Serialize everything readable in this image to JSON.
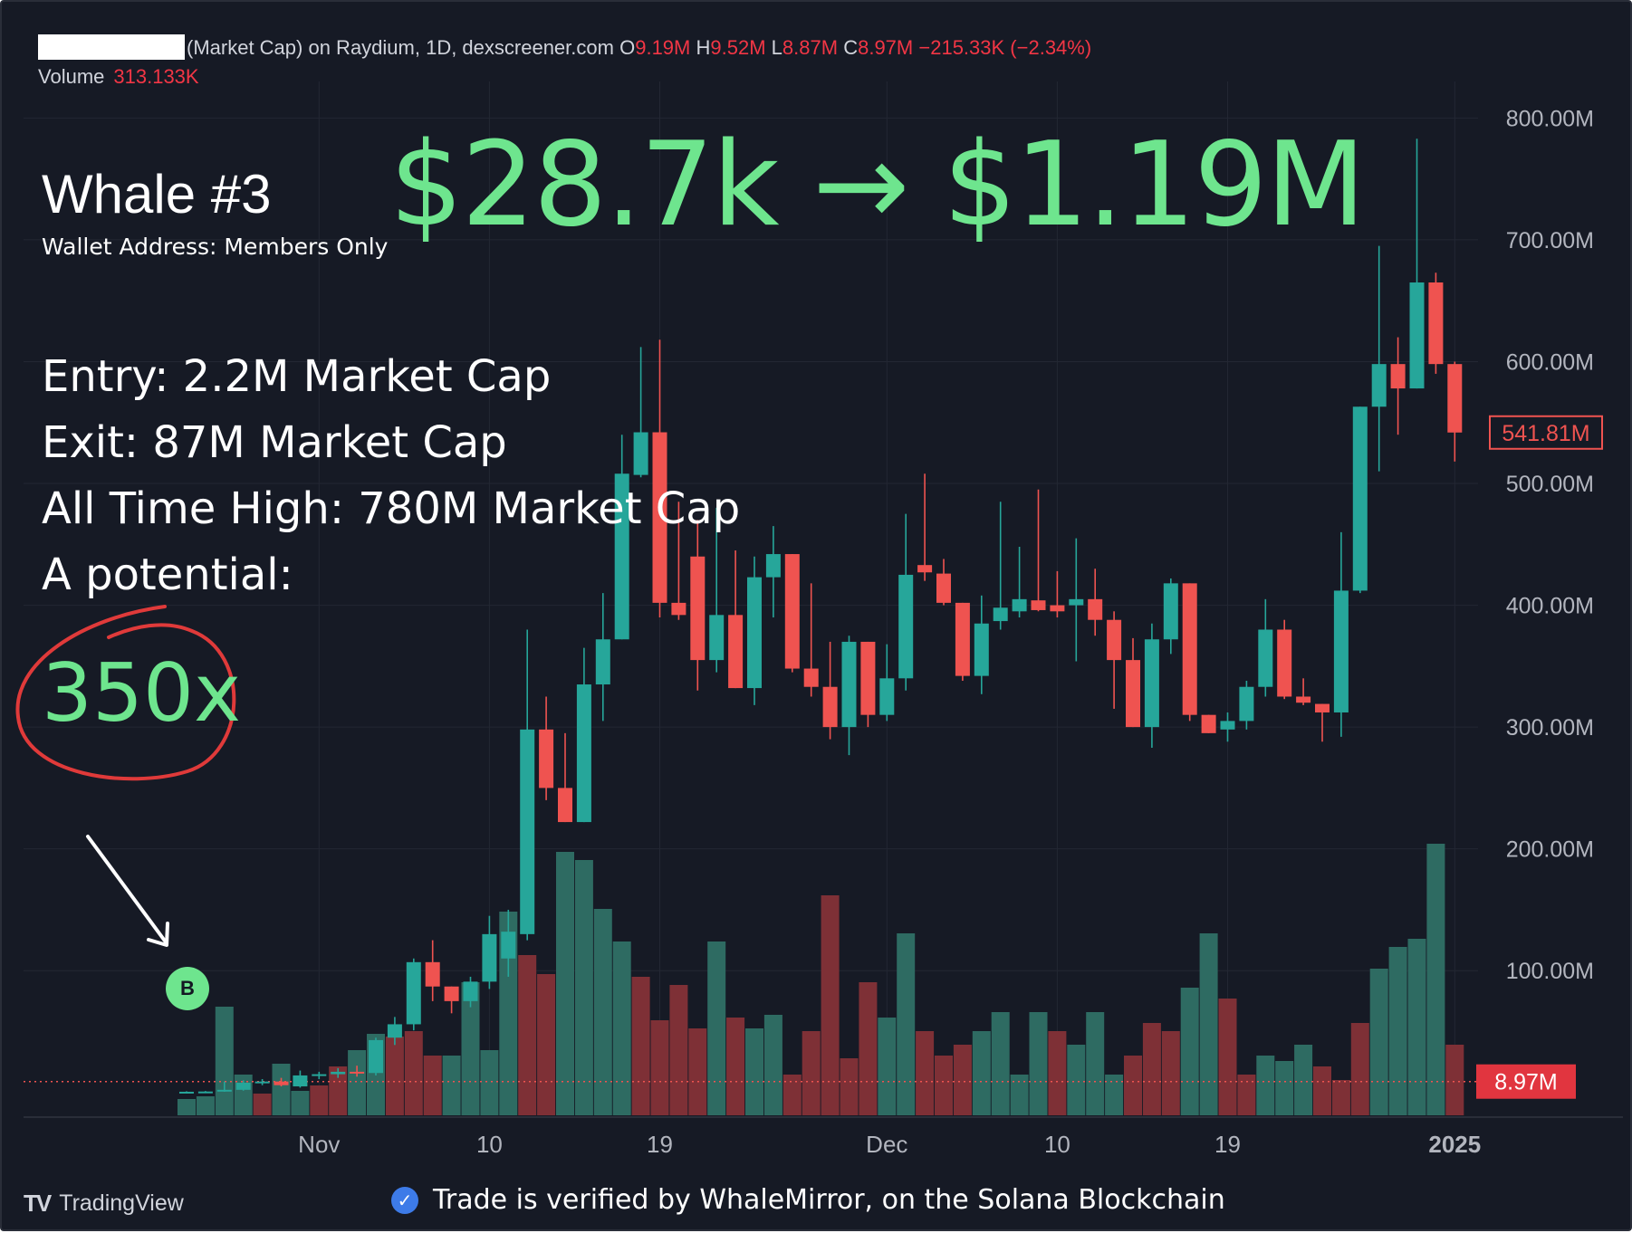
{
  "header": {
    "symbol_masked": "",
    "title_text": "(Market Cap) on Raydium, 1D, dexscreener.com",
    "o_label": "O",
    "o_value": "9.19M",
    "h_label": "H",
    "h_value": "9.52M",
    "l_label": "L",
    "l_value": "8.87M",
    "c_label": "C",
    "c_value": "8.97M",
    "change": "−215.33K (−2.34%)",
    "volume_label": "Volume",
    "volume_value": "313.133K"
  },
  "overlay": {
    "whale": "Whale #3",
    "wallet": "Wallet Address: Members Only",
    "gain": "$28.7k → $1.19M",
    "entry": "Entry: 2.2M Market Cap",
    "exit": "Exit: 87M Market Cap",
    "ath": "All Time High: 780M Market Cap",
    "potential": "A potential:",
    "multiplier": "350x",
    "buy_marker": "B"
  },
  "footer": {
    "tradingview_logo": "TV",
    "tradingview": "TradingView",
    "verified": "Trade is verified by WhaleMirror, on the Solana Blockchain"
  },
  "colors": {
    "background": "#161a25",
    "up": "#26a69a",
    "down": "#ef5350",
    "accent_green": "#6ee58e",
    "circle_red": "#e03a3a"
  },
  "chart_data": {
    "type": "candlestick",
    "y_axis": {
      "ticks": [
        "800.00M",
        "700.00M",
        "600.00M",
        "500.00M",
        "400.00M",
        "300.00M",
        "200.00M",
        "100.00M"
      ],
      "tick_values": [
        800,
        700,
        600,
        500,
        400,
        300,
        200,
        100
      ],
      "unit": "M",
      "ylim": [
        -18,
        830
      ]
    },
    "x_axis": {
      "ticks": [
        "Nov",
        "10",
        "19",
        "Dec",
        "10",
        "19",
        "2025"
      ],
      "tick_positions": [
        7,
        16,
        25,
        37,
        46,
        55,
        67
      ]
    },
    "price_labels": [
      {
        "text": "541.81M",
        "value": 541.81,
        "style": "outline"
      },
      {
        "text": "8.97M",
        "value": 8.97,
        "style": "filled"
      }
    ],
    "grid": true,
    "series": [
      {
        "name": "Market Cap",
        "candles": [
          {
            "i": 0,
            "o": 0.5,
            "h": 1,
            "l": 0.2,
            "c": 0.6
          },
          {
            "i": 1,
            "o": 0.6,
            "h": 1.2,
            "l": 0.4,
            "c": 0.8
          },
          {
            "i": 2,
            "o": 0.8,
            "h": 9,
            "l": 0.6,
            "c": 2.2
          },
          {
            "i": 3,
            "o": 2.2,
            "h": 10,
            "l": 1.5,
            "c": 8
          },
          {
            "i": 4,
            "o": 8,
            "h": 11,
            "l": 6,
            "c": 9
          },
          {
            "i": 5,
            "o": 9,
            "h": 12,
            "l": 5,
            "c": 6
          },
          {
            "i": 6,
            "o": 5,
            "h": 18,
            "l": 4,
            "c": 14
          },
          {
            "i": 7,
            "o": 14,
            "h": 17,
            "l": 11,
            "c": 15
          },
          {
            "i": 8,
            "o": 15,
            "h": 20,
            "l": 12,
            "c": 17
          },
          {
            "i": 9,
            "o": 17,
            "h": 22,
            "l": 13,
            "c": 16
          },
          {
            "i": 10,
            "o": 16,
            "h": 45,
            "l": 14,
            "c": 43
          },
          {
            "i": 11,
            "o": 45,
            "h": 62,
            "l": 39,
            "c": 56
          },
          {
            "i": 12,
            "o": 56,
            "h": 110,
            "l": 51,
            "c": 107
          },
          {
            "i": 13,
            "o": 107,
            "h": 125,
            "l": 75,
            "c": 87
          },
          {
            "i": 14,
            "o": 87,
            "h": 83,
            "l": 65,
            "c": 75
          },
          {
            "i": 15,
            "o": 75,
            "h": 95,
            "l": 70,
            "c": 91
          },
          {
            "i": 16,
            "o": 91,
            "h": 145,
            "l": 85,
            "c": 130
          },
          {
            "i": 17,
            "o": 110,
            "h": 150,
            "l": 95,
            "c": 132
          },
          {
            "i": 18,
            "o": 130,
            "h": 380,
            "l": 125,
            "c": 298
          },
          {
            "i": 19,
            "o": 298,
            "h": 325,
            "l": 240,
            "c": 250
          },
          {
            "i": 20,
            "o": 250,
            "h": 295,
            "l": 222,
            "c": 222
          },
          {
            "i": 21,
            "o": 222,
            "h": 365,
            "l": 222,
            "c": 335
          },
          {
            "i": 22,
            "o": 335,
            "h": 410,
            "l": 305,
            "c": 372
          },
          {
            "i": 23,
            "o": 372,
            "h": 540,
            "l": 372,
            "c": 508
          },
          {
            "i": 24,
            "o": 507,
            "h": 612,
            "l": 505,
            "c": 542
          },
          {
            "i": 25,
            "o": 542,
            "h": 618,
            "l": 390,
            "c": 402
          },
          {
            "i": 26,
            "o": 402,
            "h": 485,
            "l": 388,
            "c": 392
          },
          {
            "i": 27,
            "o": 440,
            "h": 470,
            "l": 330,
            "c": 355
          },
          {
            "i": 28,
            "o": 355,
            "h": 480,
            "l": 345,
            "c": 392
          },
          {
            "i": 29,
            "o": 392,
            "h": 445,
            "l": 335,
            "c": 332
          },
          {
            "i": 30,
            "o": 332,
            "h": 440,
            "l": 318,
            "c": 423
          },
          {
            "i": 31,
            "o": 423,
            "h": 465,
            "l": 390,
            "c": 442
          },
          {
            "i": 32,
            "o": 442,
            "h": 438,
            "l": 345,
            "c": 348
          },
          {
            "i": 33,
            "o": 348,
            "h": 418,
            "l": 325,
            "c": 333
          },
          {
            "i": 34,
            "o": 333,
            "h": 370,
            "l": 290,
            "c": 300
          },
          {
            "i": 35,
            "o": 300,
            "h": 375,
            "l": 277,
            "c": 370
          },
          {
            "i": 36,
            "o": 370,
            "h": 368,
            "l": 300,
            "c": 310
          },
          {
            "i": 37,
            "o": 310,
            "h": 368,
            "l": 305,
            "c": 340
          },
          {
            "i": 38,
            "o": 340,
            "h": 475,
            "l": 330,
            "c": 425
          },
          {
            "i": 39,
            "o": 433,
            "h": 508,
            "l": 420,
            "c": 427
          },
          {
            "i": 40,
            "o": 426,
            "h": 438,
            "l": 400,
            "c": 402
          },
          {
            "i": 41,
            "o": 402,
            "h": 400,
            "l": 338,
            "c": 342
          },
          {
            "i": 42,
            "o": 342,
            "h": 408,
            "l": 327,
            "c": 385
          },
          {
            "i": 43,
            "o": 387,
            "h": 485,
            "l": 380,
            "c": 398
          },
          {
            "i": 44,
            "o": 395,
            "h": 448,
            "l": 390,
            "c": 405
          },
          {
            "i": 45,
            "o": 404,
            "h": 495,
            "l": 395,
            "c": 396
          },
          {
            "i": 46,
            "o": 400,
            "h": 428,
            "l": 390,
            "c": 395
          },
          {
            "i": 47,
            "o": 400,
            "h": 455,
            "l": 354,
            "c": 405
          },
          {
            "i": 48,
            "o": 405,
            "h": 430,
            "l": 375,
            "c": 388
          },
          {
            "i": 49,
            "o": 388,
            "h": 395,
            "l": 315,
            "c": 355
          },
          {
            "i": 50,
            "o": 355,
            "h": 373,
            "l": 300,
            "c": 300
          },
          {
            "i": 51,
            "o": 300,
            "h": 385,
            "l": 283,
            "c": 372
          },
          {
            "i": 52,
            "o": 372,
            "h": 422,
            "l": 360,
            "c": 418
          },
          {
            "i": 53,
            "o": 418,
            "h": 413,
            "l": 305,
            "c": 310
          },
          {
            "i": 54,
            "o": 310,
            "h": 305,
            "l": 295,
            "c": 295
          },
          {
            "i": 55,
            "o": 298,
            "h": 312,
            "l": 288,
            "c": 305
          },
          {
            "i": 56,
            "o": 305,
            "h": 338,
            "l": 298,
            "c": 333
          },
          {
            "i": 57,
            "o": 333,
            "h": 405,
            "l": 325,
            "c": 380
          },
          {
            "i": 58,
            "o": 380,
            "h": 388,
            "l": 323,
            "c": 325
          },
          {
            "i": 59,
            "o": 325,
            "h": 340,
            "l": 318,
            "c": 320
          },
          {
            "i": 60,
            "o": 319,
            "h": 315,
            "l": 288,
            "c": 312
          },
          {
            "i": 61,
            "o": 312,
            "h": 460,
            "l": 292,
            "c": 412
          },
          {
            "i": 62,
            "o": 412,
            "h": 555,
            "l": 410,
            "c": 563
          },
          {
            "i": 63,
            "o": 563,
            "h": 695,
            "l": 510,
            "c": 598
          },
          {
            "i": 64,
            "o": 598,
            "h": 620,
            "l": 540,
            "c": 578
          },
          {
            "i": 65,
            "o": 578,
            "h": 783,
            "l": 578,
            "c": 665
          },
          {
            "i": 66,
            "o": 665,
            "h": 673,
            "l": 590,
            "c": 598
          },
          {
            "i": 67,
            "o": 598,
            "h": 600,
            "l": 518,
            "c": 541.81
          }
        ],
        "volume_relative": [
          {
            "i": 0,
            "v": 0.06,
            "dir": "up"
          },
          {
            "i": 1,
            "v": 0.07,
            "dir": "up"
          },
          {
            "i": 2,
            "v": 0.4,
            "dir": "up"
          },
          {
            "i": 3,
            "v": 0.15,
            "dir": "up"
          },
          {
            "i": 4,
            "v": 0.08,
            "dir": "down"
          },
          {
            "i": 5,
            "v": 0.19,
            "dir": "up"
          },
          {
            "i": 6,
            "v": 0.09,
            "dir": "up"
          },
          {
            "i": 7,
            "v": 0.11,
            "dir": "down"
          },
          {
            "i": 8,
            "v": 0.18,
            "dir": "down"
          },
          {
            "i": 9,
            "v": 0.24,
            "dir": "up"
          },
          {
            "i": 10,
            "v": 0.3,
            "dir": "up"
          },
          {
            "i": 11,
            "v": 0.29,
            "dir": "down"
          },
          {
            "i": 12,
            "v": 0.31,
            "dir": "down"
          },
          {
            "i": 13,
            "v": 0.22,
            "dir": "down"
          },
          {
            "i": 14,
            "v": 0.22,
            "dir": "up"
          },
          {
            "i": 15,
            "v": 0.49,
            "dir": "up"
          },
          {
            "i": 16,
            "v": 0.24,
            "dir": "up"
          },
          {
            "i": 17,
            "v": 0.75,
            "dir": "up"
          },
          {
            "i": 18,
            "v": 0.59,
            "dir": "down"
          },
          {
            "i": 19,
            "v": 0.52,
            "dir": "down"
          },
          {
            "i": 20,
            "v": 0.97,
            "dir": "up"
          },
          {
            "i": 21,
            "v": 0.94,
            "dir": "up"
          },
          {
            "i": 22,
            "v": 0.76,
            "dir": "up"
          },
          {
            "i": 23,
            "v": 0.64,
            "dir": "up"
          },
          {
            "i": 24,
            "v": 0.51,
            "dir": "down"
          },
          {
            "i": 25,
            "v": 0.35,
            "dir": "down"
          },
          {
            "i": 26,
            "v": 0.48,
            "dir": "down"
          },
          {
            "i": 27,
            "v": 0.32,
            "dir": "down"
          },
          {
            "i": 28,
            "v": 0.64,
            "dir": "up"
          },
          {
            "i": 29,
            "v": 0.36,
            "dir": "down"
          },
          {
            "i": 30,
            "v": 0.32,
            "dir": "up"
          },
          {
            "i": 31,
            "v": 0.37,
            "dir": "up"
          },
          {
            "i": 32,
            "v": 0.15,
            "dir": "down"
          },
          {
            "i": 33,
            "v": 0.31,
            "dir": "down"
          },
          {
            "i": 34,
            "v": 0.81,
            "dir": "down"
          },
          {
            "i": 35,
            "v": 0.21,
            "dir": "down"
          },
          {
            "i": 36,
            "v": 0.49,
            "dir": "down"
          },
          {
            "i": 37,
            "v": 0.36,
            "dir": "up"
          },
          {
            "i": 38,
            "v": 0.67,
            "dir": "up"
          },
          {
            "i": 39,
            "v": 0.31,
            "dir": "down"
          },
          {
            "i": 40,
            "v": 0.22,
            "dir": "down"
          },
          {
            "i": 41,
            "v": 0.26,
            "dir": "down"
          },
          {
            "i": 42,
            "v": 0.31,
            "dir": "up"
          },
          {
            "i": 43,
            "v": 0.38,
            "dir": "up"
          },
          {
            "i": 44,
            "v": 0.15,
            "dir": "up"
          },
          {
            "i": 45,
            "v": 0.38,
            "dir": "up"
          },
          {
            "i": 46,
            "v": 0.31,
            "dir": "down"
          },
          {
            "i": 47,
            "v": 0.26,
            "dir": "up"
          },
          {
            "i": 48,
            "v": 0.38,
            "dir": "up"
          },
          {
            "i": 49,
            "v": 0.15,
            "dir": "up"
          },
          {
            "i": 50,
            "v": 0.22,
            "dir": "down"
          },
          {
            "i": 51,
            "v": 0.34,
            "dir": "down"
          },
          {
            "i": 52,
            "v": 0.31,
            "dir": "down"
          },
          {
            "i": 53,
            "v": 0.47,
            "dir": "up"
          },
          {
            "i": 54,
            "v": 0.67,
            "dir": "up"
          },
          {
            "i": 55,
            "v": 0.43,
            "dir": "down"
          },
          {
            "i": 56,
            "v": 0.15,
            "dir": "down"
          },
          {
            "i": 57,
            "v": 0.22,
            "dir": "up"
          },
          {
            "i": 58,
            "v": 0.2,
            "dir": "up"
          },
          {
            "i": 59,
            "v": 0.26,
            "dir": "up"
          },
          {
            "i": 60,
            "v": 0.18,
            "dir": "down"
          },
          {
            "i": 61,
            "v": 0.13,
            "dir": "down"
          },
          {
            "i": 62,
            "v": 0.34,
            "dir": "down"
          },
          {
            "i": 63,
            "v": 0.54,
            "dir": "up"
          },
          {
            "i": 64,
            "v": 0.62,
            "dir": "up"
          },
          {
            "i": 65,
            "v": 0.65,
            "dir": "up"
          },
          {
            "i": 66,
            "v": 1.0,
            "dir": "up"
          },
          {
            "i": 67,
            "v": 0.26,
            "dir": "down"
          }
        ]
      }
    ]
  }
}
